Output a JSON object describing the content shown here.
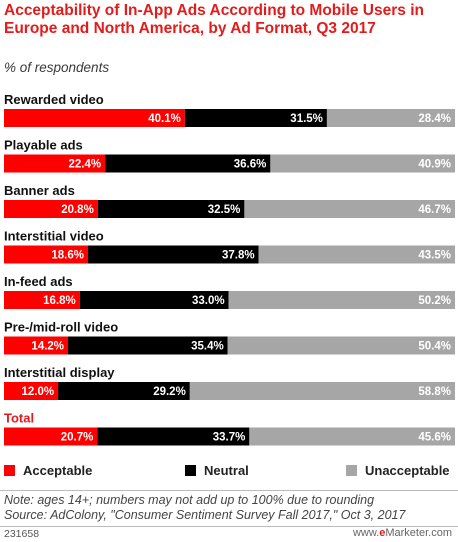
{
  "chart_data": {
    "type": "bar",
    "orientation": "horizontal",
    "stacked": true,
    "title": "Acceptability of In-App Ads According to Mobile Users in Europe and North America, by Ad Format, Q3 2017",
    "subtitle": "% of respondents",
    "categories": [
      "Rewarded video",
      "Playable ads",
      "Banner ads",
      "Interstitial video",
      "In-feed ads",
      "Pre-/mid-roll video",
      "Interstitial display",
      "Total"
    ],
    "series": [
      {
        "name": "Acceptable",
        "color": "#ff0000",
        "values": [
          40.1,
          22.4,
          20.8,
          18.6,
          16.8,
          14.2,
          12.0,
          20.7
        ],
        "labels": [
          "40.1%",
          "22.4%",
          "20.8%",
          "18.6%",
          "16.8%",
          "14.2%",
          "12.0%",
          "20.7%"
        ]
      },
      {
        "name": "Neutral",
        "color": "#000000",
        "values": [
          31.5,
          36.6,
          32.5,
          37.8,
          33.0,
          35.4,
          29.2,
          33.7
        ],
        "labels": [
          "31.5%",
          "36.6%",
          "32.5%",
          "37.8%",
          "33.0%",
          "35.4%",
          "29.2%",
          "33.7%"
        ]
      },
      {
        "name": "Unacceptable",
        "color": "#a6a6a6",
        "values": [
          28.4,
          40.9,
          46.7,
          43.5,
          50.2,
          50.4,
          58.8,
          45.6
        ],
        "labels": [
          "28.4%",
          "40.9%",
          "46.7%",
          "43.5%",
          "50.2%",
          "50.4%",
          "58.8%",
          "45.6%"
        ]
      }
    ],
    "highlight_category": "Total",
    "highlight_color": "#e31b1b",
    "legend_position": "bottom",
    "grid": false
  },
  "footer": {
    "note": "Note: ages 14+; numbers may not add up to 100% due to rounding",
    "source": "Source: AdColony, \"Consumer Sentiment Survey Fall 2017,\" Oct 3, 2017",
    "chart_id": "231658",
    "brand_prefix": "www.",
    "brand_e": "e",
    "brand_rest": "Marketer.com"
  }
}
